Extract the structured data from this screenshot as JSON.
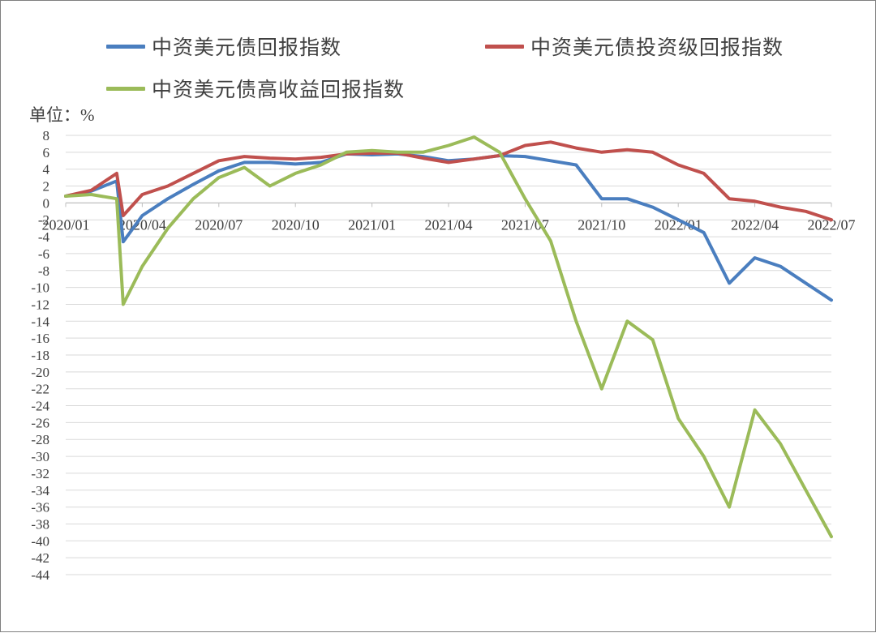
{
  "chart_data": {
    "type": "line",
    "unit_label": "单位：%",
    "x_tick_labels": [
      "2020/01",
      "2020/04",
      "2020/07",
      "2020/10",
      "2021/01",
      "2021/04",
      "2021/07",
      "2021/10",
      "2022/01",
      "2022/04",
      "2022/07"
    ],
    "ylim": [
      -44,
      8
    ],
    "y_ticks": [
      8,
      6,
      4,
      2,
      0,
      -2,
      -4,
      -6,
      -8,
      -10,
      -12,
      -14,
      -16,
      -18,
      -20,
      -22,
      -24,
      -26,
      -28,
      -30,
      -32,
      -34,
      -36,
      -38,
      -40,
      -42,
      -44
    ],
    "grid": true,
    "legend_position": "top",
    "series": [
      {
        "name": "中资美元债回报指数",
        "color": "#4a7ebf",
        "points": [
          [
            "2020/01",
            0.8
          ],
          [
            "2020/02",
            1.4
          ],
          [
            "2020/03",
            2.6
          ],
          [
            "2020/03",
            -4.6
          ],
          [
            "2020/04",
            -1.5
          ],
          [
            "2020/05",
            0.5
          ],
          [
            "2020/06",
            2.2
          ],
          [
            "2020/07",
            3.8
          ],
          [
            "2020/08",
            4.8
          ],
          [
            "2020/09",
            4.8
          ],
          [
            "2020/10",
            4.6
          ],
          [
            "2020/11",
            4.8
          ],
          [
            "2020/12",
            5.8
          ],
          [
            "2021/01",
            5.7
          ],
          [
            "2021/02",
            5.8
          ],
          [
            "2021/03",
            5.5
          ],
          [
            "2021/04",
            5.0
          ],
          [
            "2021/05",
            5.2
          ],
          [
            "2021/06",
            5.6
          ],
          [
            "2021/07",
            5.5
          ],
          [
            "2021/08",
            5.0
          ],
          [
            "2021/09",
            4.5
          ],
          [
            "2021/10",
            0.5
          ],
          [
            "2021/11",
            0.5
          ],
          [
            "2021/12",
            -0.5
          ],
          [
            "2022/01",
            -2.0
          ],
          [
            "2022/02",
            -3.5
          ],
          [
            "2022/03",
            -9.5
          ],
          [
            "2022/04",
            -6.5
          ],
          [
            "2022/05",
            -7.5
          ],
          [
            "2022/06",
            -9.5
          ],
          [
            "2022/07",
            -11.5
          ]
        ]
      },
      {
        "name": "中资美元债投资级回报指数",
        "color": "#c0504d",
        "points": [
          [
            "2020/01",
            0.8
          ],
          [
            "2020/02",
            1.5
          ],
          [
            "2020/03",
            3.5
          ],
          [
            "2020/03",
            -1.5
          ],
          [
            "2020/04",
            1.0
          ],
          [
            "2020/05",
            2.0
          ],
          [
            "2020/06",
            3.5
          ],
          [
            "2020/07",
            5.0
          ],
          [
            "2020/08",
            5.5
          ],
          [
            "2020/09",
            5.3
          ],
          [
            "2020/10",
            5.2
          ],
          [
            "2020/11",
            5.4
          ],
          [
            "2020/12",
            5.8
          ],
          [
            "2021/01",
            5.9
          ],
          [
            "2021/02",
            5.9
          ],
          [
            "2021/03",
            5.3
          ],
          [
            "2021/04",
            4.8
          ],
          [
            "2021/05",
            5.2
          ],
          [
            "2021/06",
            5.6
          ],
          [
            "2021/07",
            6.8
          ],
          [
            "2021/08",
            7.2
          ],
          [
            "2021/09",
            6.5
          ],
          [
            "2021/10",
            6.0
          ],
          [
            "2021/11",
            6.3
          ],
          [
            "2021/12",
            6.0
          ],
          [
            "2022/01",
            4.5
          ],
          [
            "2022/02",
            3.5
          ],
          [
            "2022/03",
            0.5
          ],
          [
            "2022/04",
            0.2
          ],
          [
            "2022/05",
            -0.5
          ],
          [
            "2022/06",
            -1.0
          ],
          [
            "2022/07",
            -2.0
          ]
        ]
      },
      {
        "name": "中资美元债高收益回报指数",
        "color": "#9bbb59",
        "points": [
          [
            "2020/01",
            0.8
          ],
          [
            "2020/02",
            1.0
          ],
          [
            "2020/03",
            0.5
          ],
          [
            "2020/03",
            -12.0
          ],
          [
            "2020/04",
            -7.5
          ],
          [
            "2020/05",
            -3.0
          ],
          [
            "2020/06",
            0.5
          ],
          [
            "2020/07",
            3.0
          ],
          [
            "2020/08",
            4.2
          ],
          [
            "2020/09",
            2.0
          ],
          [
            "2020/10",
            3.5
          ],
          [
            "2020/11",
            4.5
          ],
          [
            "2020/12",
            6.0
          ],
          [
            "2021/01",
            6.2
          ],
          [
            "2021/02",
            6.0
          ],
          [
            "2021/03",
            6.0
          ],
          [
            "2021/04",
            6.8
          ],
          [
            "2021/05",
            7.8
          ],
          [
            "2021/06",
            6.0
          ],
          [
            "2021/07",
            0.5
          ],
          [
            "2021/08",
            -4.5
          ],
          [
            "2021/09",
            -14.0
          ],
          [
            "2021/10",
            -22.0
          ],
          [
            "2021/11",
            -14.0
          ],
          [
            "2021/12",
            -16.2
          ],
          [
            "2022/01",
            -25.5
          ],
          [
            "2022/02",
            -30.0
          ],
          [
            "2022/03",
            -36.0
          ],
          [
            "2022/04",
            -24.5
          ],
          [
            "2022/05",
            -28.5
          ],
          [
            "2022/06",
            -34.0
          ],
          [
            "2022/07",
            -39.5
          ]
        ]
      }
    ]
  }
}
